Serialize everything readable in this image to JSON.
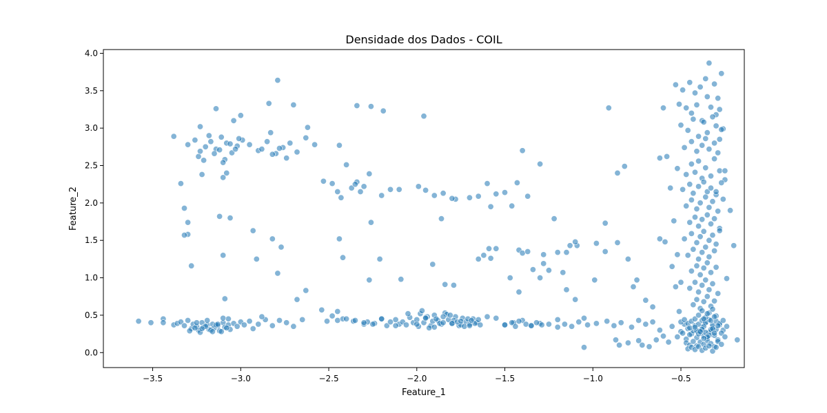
{
  "chart_data": {
    "type": "scatter",
    "title": "Densidade dos Dados - COIL",
    "xlabel": "Feature_1",
    "ylabel": "Feature_2",
    "xlim": [
      -3.78,
      -0.14
    ],
    "ylim": [
      -0.2,
      4.05
    ],
    "x_ticks": [
      -3.5,
      -3.0,
      -2.5,
      -2.0,
      -1.5,
      -1.0,
      -0.5
    ],
    "x_tick_labels": [
      "−3.5",
      "−3.0",
      "−2.5",
      "−2.0",
      "−1.5",
      "−1.0",
      "−0.5"
    ],
    "y_ticks": [
      0.0,
      0.5,
      1.0,
      1.5,
      2.0,
      2.5,
      3.0,
      3.5,
      4.0
    ],
    "y_tick_labels": [
      "0.0",
      "0.5",
      "1.0",
      "1.5",
      "2.0",
      "2.5",
      "3.0",
      "3.5",
      "4.0"
    ],
    "grid": false,
    "legend": false,
    "colors": {
      "marker_fill": "#1f77b4",
      "marker_edge": "#ffffff",
      "marker_alpha": 0.55
    },
    "points": {
      "x": [
        -3.58,
        -3.51,
        -3.44,
        -3.44,
        -3.38,
        -3.36,
        -3.34,
        -3.32,
        -3.3,
        -3.28,
        -3.27,
        -3.25,
        -3.24,
        -3.22,
        -3.21,
        -3.19,
        -3.18,
        -3.16,
        -3.15,
        -3.13,
        -3.12,
        -3.1,
        -3.09,
        -3.07,
        -3.06,
        -3.04,
        -3.02,
        -3.0,
        -2.98,
        -3.29,
        -3.26,
        -3.23,
        -3.2,
        -3.17,
        -3.14,
        -3.11,
        -3.08,
        -3.25,
        -3.19,
        -3.13,
        -3.07,
        -3.22,
        -3.16,
        -3.1,
        -2.95,
        -2.9,
        -2.86,
        -2.82,
        -2.78,
        -2.74,
        -2.7,
        -2.65,
        -2.93,
        -2.88,
        -3.3,
        -3.26,
        -3.23,
        -3.2,
        -3.17,
        -3.14,
        -3.11,
        -3.08,
        -3.05,
        -3.02,
        -2.99,
        -3.24,
        -3.18,
        -3.12,
        -3.06,
        -3.01,
        -3.21,
        -3.15,
        -3.09,
        -3.03,
        -2.95,
        -2.9,
        -2.85,
        -2.8,
        -2.76,
        -2.72,
        -2.68,
        -2.63,
        -2.58,
        -2.88,
        -2.82,
        -2.74,
        -3.38,
        -3.23,
        -3.14,
        -3.04,
        -3.0,
        -2.84,
        -2.79,
        -2.7,
        -3.1,
        -3.08,
        -2.83,
        -2.62,
        -2.78,
        -3.22,
        -3.34,
        -3.32,
        -3.3,
        -3.3,
        -3.28,
        -3.12,
        -3.1,
        -3.09,
        -3.06,
        -2.93,
        -2.91,
        -2.82,
        -2.77,
        -2.79,
        -2.68,
        -2.63,
        -3.32,
        -3.1,
        -2.54,
        -2.51,
        -2.48,
        -2.45,
        -2.42,
        -2.36,
        -2.3,
        -2.28,
        -2.24,
        -2.2,
        -2.17,
        -2.12,
        -2.1,
        -2.08,
        -2.06,
        -2.04,
        -2.02,
        -2.0,
        -1.98,
        -1.96,
        -1.94,
        -1.92,
        -1.9,
        -1.88,
        -1.86,
        -1.84,
        -1.82,
        -1.8,
        -1.78,
        -1.76,
        -1.74,
        -1.72,
        -1.7,
        -1.68,
        -1.66,
        -1.64,
        -1.99,
        -1.95,
        -1.91,
        -1.87,
        -1.83,
        -1.79,
        -1.75,
        -1.71,
        -1.67,
        -1.97,
        -1.93,
        -1.89,
        -1.85,
        -1.81,
        -1.77,
        -1.73,
        -1.69,
        -2.05,
        -2.0,
        -1.95,
        -1.9,
        -1.85,
        -1.8,
        -1.75,
        -1.7,
        -1.65,
        -1.6,
        -1.55,
        -1.5,
        -1.45,
        -1.4,
        -1.35,
        -1.3,
        -1.25,
        -1.2,
        -2.45,
        -2.4,
        -2.35,
        -2.3,
        -2.25,
        -2.2,
        -2.15,
        -2.12,
        -2.53,
        -2.48,
        -2.45,
        -2.43,
        -2.4,
        -2.37,
        -2.34,
        -2.32,
        -2.3,
        -2.27,
        -2.2,
        -2.15,
        -2.1,
        -1.99,
        -1.95,
        -1.9,
        -1.85,
        -1.78,
        -1.7,
        -1.65,
        -1.6,
        -1.58,
        -1.55,
        -1.5,
        -1.46,
        -1.43,
        -1.4,
        -1.37,
        -2.34,
        -2.26,
        -2.19,
        -1.96,
        -2.44,
        -2.35,
        -2.26,
        -1.86,
        -1.8,
        -1.62,
        -1.59,
        -1.42,
        -1.4,
        -1.3,
        -1.28,
        -1.22,
        -1.15,
        -1.1,
        -1.09,
        -0.98,
        -0.93,
        -0.91,
        -0.86,
        -0.82,
        -2.44,
        -2.42,
        -2.27,
        -2.21,
        -2.09,
        -1.91,
        -1.84,
        -1.79,
        -1.65,
        -1.58,
        -1.55,
        -1.47,
        -1.42,
        -1.37,
        -1.34,
        -1.3,
        -1.28,
        -1.25,
        -1.2,
        -1.17,
        -1.15,
        -1.13,
        -1.1,
        -1.05,
        -0.99,
        -0.93,
        -0.86,
        -0.8,
        -0.77,
        -0.75,
        -0.7,
        -0.66,
        -0.62,
        -1.5,
        -1.46,
        -1.44,
        -1.42,
        -1.38,
        -1.35,
        -1.32,
        -1.29,
        -1.2,
        -1.16,
        -1.12,
        -1.08,
        -1.03,
        -0.98,
        -0.92,
        -0.88,
        -0.84,
        -0.78,
        -0.74,
        -0.7,
        -0.66,
        -0.85,
        -0.8,
        -0.74,
        -0.72,
        -0.68,
        -0.64,
        -0.6,
        -0.57,
        -1.05,
        -0.87,
        -0.62,
        -0.55,
        -0.5,
        -0.48,
        -0.46,
        -0.44,
        -0.42,
        -0.4,
        -0.38,
        -0.36,
        -0.34,
        -0.32,
        -0.3,
        -0.28,
        -0.26,
        -0.24,
        -0.52,
        -0.49,
        -0.47,
        -0.45,
        -0.43,
        -0.41,
        -0.39,
        -0.37,
        -0.35,
        -0.33,
        -0.31,
        -0.29,
        -0.27,
        -0.25,
        -0.5,
        -0.48,
        -0.46,
        -0.44,
        -0.42,
        -0.4,
        -0.38,
        -0.36,
        -0.34,
        -0.32,
        -0.3,
        -0.28,
        -0.26,
        -0.47,
        -0.45,
        -0.43,
        -0.41,
        -0.39,
        -0.37,
        -0.35,
        -0.33,
        -0.31,
        -0.29,
        -0.27,
        -0.46,
        -0.44,
        -0.42,
        -0.4,
        -0.38,
        -0.36,
        -0.34,
        -0.32,
        -0.3,
        -0.45,
        -0.41,
        -0.37,
        -0.33,
        -0.29,
        -0.4,
        -0.38,
        -0.36,
        -0.34,
        -0.32,
        -0.42,
        -0.39,
        -0.35,
        -0.31,
        -0.37,
        -0.53,
        -0.51,
        -0.49,
        -0.47,
        -0.45,
        -0.44,
        -0.42,
        -0.41,
        -0.39,
        -0.38,
        -0.36,
        -0.35,
        -0.34,
        -0.33,
        -0.31,
        -0.3,
        -0.29,
        -0.28,
        -0.27,
        -0.5,
        -0.46,
        -0.43,
        -0.4,
        -0.37,
        -0.35,
        -0.32,
        -0.3,
        -0.28,
        -0.26,
        -0.48,
        -0.44,
        -0.41,
        -0.38,
        -0.36,
        -0.34,
        -0.31,
        -0.29,
        -0.52,
        -0.47,
        -0.44,
        -0.42,
        -0.4,
        -0.38,
        -0.36,
        -0.33,
        -0.31,
        -0.28,
        -0.25,
        -0.49,
        -0.45,
        -0.43,
        -0.4,
        -0.37,
        -0.35,
        -0.33,
        -0.3,
        -0.27,
        -0.47,
        -0.44,
        -0.41,
        -0.39,
        -0.36,
        -0.34,
        -0.32,
        -0.29,
        -0.45,
        -0.42,
        -0.4,
        -0.38,
        -0.35,
        -0.33,
        -0.31,
        -0.28,
        -0.48,
        -0.44,
        -0.41,
        -0.39,
        -0.37,
        -0.34,
        -0.32,
        -0.3,
        -0.46,
        -0.43,
        -0.4,
        -0.38,
        -0.36,
        -0.34,
        -0.31,
        -0.44,
        -0.41,
        -0.39,
        -0.37,
        -0.35,
        -0.33,
        -0.3,
        -0.45,
        -0.42,
        -0.4,
        -0.38,
        -0.36,
        -0.34,
        -0.32,
        -0.29,
        -0.43,
        -0.41,
        -0.39,
        -0.37,
        -0.35,
        -0.33,
        -0.31,
        -0.4,
        -0.38,
        -0.36,
        -0.34,
        -0.32,
        -0.3,
        -0.37,
        -0.35,
        -0.33,
        -0.31,
        -0.6,
        -0.58,
        -0.56,
        -0.54,
        -0.52,
        -0.5,
        -0.27,
        -0.25,
        -0.22,
        -0.2,
        -0.18,
        -0.3,
        -0.28,
        -0.62,
        -0.59,
        -0.55,
        -0.53,
        -0.51,
        -0.26,
        -0.24
      ],
      "y": [
        0.42,
        0.4,
        0.45,
        0.4,
        0.37,
        0.39,
        0.41,
        0.36,
        0.43,
        0.32,
        0.38,
        0.35,
        0.3,
        0.4,
        0.34,
        0.37,
        0.31,
        0.38,
        0.33,
        0.36,
        0.29,
        0.4,
        0.34,
        0.37,
        0.31,
        0.39,
        0.35,
        0.41,
        0.37,
        0.29,
        0.33,
        0.27,
        0.35,
        0.3,
        0.37,
        0.28,
        0.33,
        0.4,
        0.43,
        0.38,
        0.45,
        0.32,
        0.28,
        0.46,
        0.42,
        0.38,
        0.44,
        0.36,
        0.43,
        0.4,
        0.35,
        0.44,
        0.32,
        0.48,
        2.78,
        2.84,
        2.69,
        2.75,
        2.82,
        2.72,
        2.88,
        2.8,
        2.67,
        2.76,
        2.84,
        2.62,
        2.9,
        2.71,
        2.79,
        2.86,
        2.57,
        2.66,
        2.58,
        2.72,
        2.78,
        2.7,
        2.82,
        2.66,
        2.74,
        2.8,
        2.68,
        2.87,
        2.78,
        2.72,
        2.65,
        2.6,
        2.89,
        3.02,
        3.26,
        3.1,
        3.17,
        3.33,
        3.64,
        3.31,
        2.54,
        2.4,
        2.94,
        3.01,
        2.73,
        2.38,
        2.26,
        1.93,
        1.74,
        1.58,
        1.16,
        1.82,
        1.3,
        0.72,
        1.8,
        1.63,
        1.25,
        1.52,
        1.41,
        1.06,
        0.71,
        0.83,
        1.57,
        2.34,
        0.57,
        0.42,
        0.49,
        0.43,
        0.45,
        0.42,
        0.38,
        0.41,
        0.39,
        0.45,
        0.36,
        0.44,
        0.38,
        0.41,
        0.37,
        0.47,
        0.4,
        0.44,
        0.52,
        0.4,
        0.48,
        0.36,
        0.5,
        0.43,
        0.38,
        0.53,
        0.44,
        0.39,
        0.48,
        0.36,
        0.46,
        0.41,
        0.38,
        0.45,
        0.4,
        0.37,
        0.35,
        0.47,
        0.42,
        0.39,
        0.51,
        0.43,
        0.37,
        0.45,
        0.39,
        0.56,
        0.33,
        0.45,
        0.4,
        0.5,
        0.41,
        0.35,
        0.43,
        0.52,
        0.38,
        0.46,
        0.34,
        0.48,
        0.39,
        0.42,
        0.36,
        0.44,
        0.48,
        0.46,
        0.37,
        0.4,
        0.43,
        0.36,
        0.39,
        0.38,
        0.34,
        0.55,
        0.45,
        0.43,
        0.4,
        0.38,
        0.45,
        0.41,
        0.36,
        2.29,
        2.26,
        2.15,
        2.07,
        2.51,
        2.2,
        2.28,
        2.15,
        2.22,
        2.39,
        2.1,
        2.18,
        2.18,
        2.22,
        2.17,
        2.1,
        2.13,
        2.05,
        2.07,
        2.09,
        2.26,
        1.95,
        2.12,
        2.14,
        1.96,
        2.27,
        2.7,
        2.09,
        3.3,
        3.29,
        3.23,
        3.16,
        2.77,
        2.25,
        1.74,
        1.79,
        2.06,
        1.3,
        1.39,
        1.37,
        1.33,
        2.52,
        1.31,
        1.79,
        1.34,
        0.71,
        1.43,
        1.46,
        1.73,
        3.27,
        2.4,
        2.49,
        1.52,
        1.27,
        0.97,
        1.25,
        0.98,
        1.18,
        0.91,
        0.9,
        1.25,
        1.26,
        1.39,
        1.0,
        0.81,
        1.35,
        1.11,
        1.0,
        1.19,
        1.1,
        1.34,
        1.07,
        0.84,
        1.43,
        1.48,
        0.46,
        0.97,
        1.35,
        1.47,
        1.25,
        0.88,
        0.97,
        0.7,
        0.61,
        1.52,
        0.37,
        0.4,
        0.35,
        0.42,
        0.38,
        0.36,
        0.4,
        0.37,
        0.44,
        0.38,
        0.35,
        0.41,
        0.37,
        0.39,
        0.42,
        0.36,
        0.4,
        0.34,
        0.43,
        0.38,
        0.41,
        0.1,
        0.13,
        0.16,
        0.1,
        0.08,
        0.17,
        0.22,
        0.14,
        0.07,
        0.17,
        0.3,
        0.35,
        0.28,
        0.38,
        0.32,
        0.25,
        0.36,
        0.29,
        0.33,
        0.4,
        0.27,
        0.34,
        0.31,
        0.37,
        0.3,
        0.35,
        0.21,
        0.26,
        0.18,
        0.24,
        0.29,
        0.2,
        0.27,
        0.22,
        0.19,
        0.28,
        0.23,
        0.17,
        0.26,
        0.21,
        0.41,
        0.44,
        0.39,
        0.42,
        0.45,
        0.38,
        0.43,
        0.4,
        0.44,
        0.37,
        0.42,
        0.39,
        0.43,
        0.13,
        0.1,
        0.15,
        0.09,
        0.14,
        0.11,
        0.16,
        0.12,
        0.08,
        0.15,
        0.11,
        0.05,
        0.07,
        0.04,
        0.08,
        0.03,
        0.06,
        0.09,
        0.02,
        0.07,
        0.33,
        0.29,
        0.35,
        0.31,
        0.36,
        0.25,
        0.31,
        0.27,
        0.23,
        0.32,
        0.34,
        0.28,
        0.21,
        0.26,
        0.19,
        3.58,
        3.32,
        3.51,
        3.27,
        3.61,
        3.2,
        3.47,
        3.31,
        3.55,
        3.1,
        3.66,
        3.42,
        3.87,
        3.28,
        3.59,
        3.18,
        3.4,
        3.25,
        3.73,
        3.04,
        2.97,
        3.12,
        2.89,
        3.08,
        2.94,
        3.15,
        3.03,
        2.85,
        2.99,
        2.74,
        2.82,
        2.69,
        2.77,
        2.86,
        2.72,
        2.8,
        2.67,
        2.46,
        2.38,
        2.52,
        2.41,
        2.56,
        2.33,
        2.47,
        2.36,
        2.59,
        2.43,
        2.31,
        2.18,
        2.25,
        2.13,
        2.22,
        2.28,
        2.15,
        2.2,
        2.11,
        2.27,
        1.96,
        2.04,
        1.92,
        2.0,
        2.08,
        1.94,
        2.02,
        1.89,
        1.74,
        1.81,
        1.69,
        1.78,
        1.84,
        1.72,
        1.79,
        1.66,
        1.52,
        1.59,
        1.47,
        1.55,
        1.62,
        1.5,
        1.57,
        1.45,
        1.3,
        1.38,
        1.25,
        1.34,
        1.41,
        1.28,
        1.36,
        1.09,
        1.16,
        1.04,
        1.13,
        1.2,
        1.07,
        1.14,
        0.86,
        0.94,
        0.81,
        0.9,
        0.97,
        0.84,
        0.92,
        0.79,
        0.64,
        0.71,
        0.59,
        0.68,
        0.75,
        0.62,
        0.69,
        0.5,
        0.56,
        0.47,
        0.53,
        0.58,
        0.49,
        0.45,
        0.52,
        0.43,
        0.48,
        3.27,
        2.62,
        2.2,
        1.76,
        1.31,
        0.94,
        2.98,
        2.43,
        1.9,
        1.43,
        0.17,
        2.15,
        1.63,
        2.6,
        1.48,
        1.15,
        0.88,
        0.55,
        2.05,
        0.99
      ]
    }
  }
}
